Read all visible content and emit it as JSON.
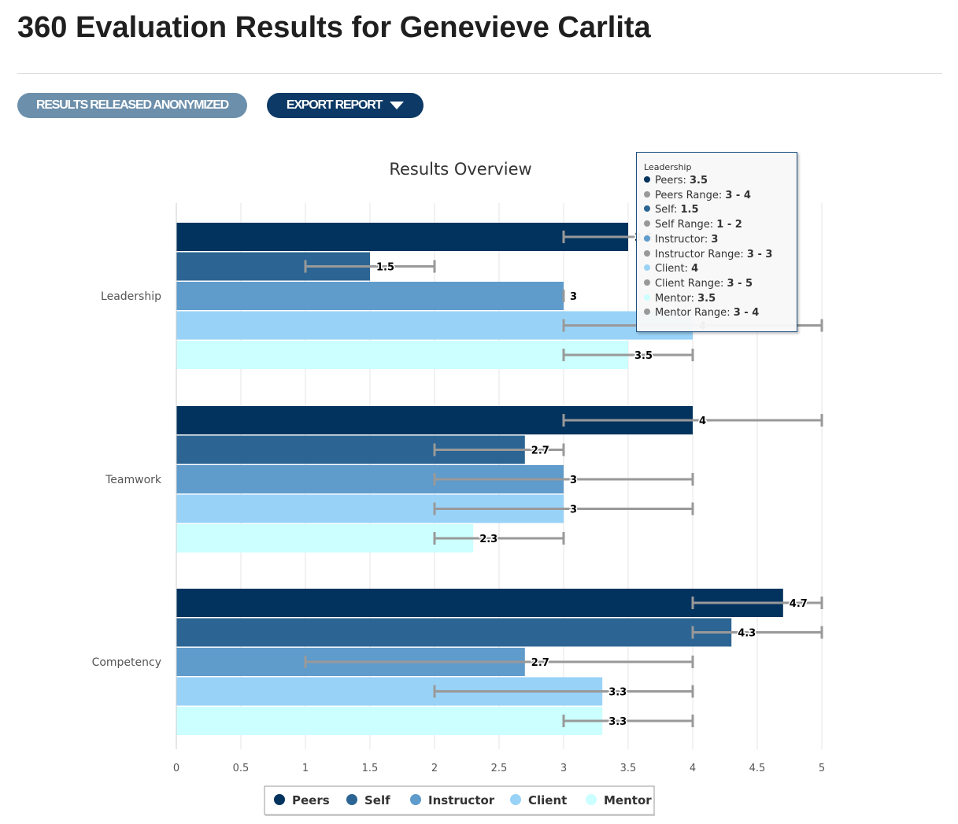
{
  "page": {
    "title": "360 Evaluation Results for Genevieve Carlita",
    "status_label": "RESULTS RELEASED ANONYMIZED",
    "export_label": "EXPORT REPORT"
  },
  "chart_data": {
    "type": "bar",
    "orientation": "horizontal",
    "title": "Results Overview",
    "categories": [
      "Leadership",
      "Teamwork",
      "Competency"
    ],
    "xlim": [
      0,
      5
    ],
    "ticks": [
      "0",
      "0.5",
      "1",
      "1.5",
      "2",
      "2.5",
      "3",
      "3.5",
      "4",
      "4.5",
      "5"
    ],
    "grid": true,
    "legend_position": "bottom",
    "series": [
      {
        "name": "Peers",
        "color": "#02335e",
        "values": [
          3.5,
          4,
          4.7
        ],
        "ranges": [
          [
            3,
            4
          ],
          [
            3,
            5
          ],
          [
            4,
            5
          ]
        ],
        "labels": [
          "3.5",
          "4",
          "4.7"
        ]
      },
      {
        "name": "Self",
        "color": "#2c6593",
        "values": [
          1.5,
          2.7,
          4.3
        ],
        "ranges": [
          [
            1,
            2
          ],
          [
            2,
            3
          ],
          [
            4,
            5
          ]
        ],
        "labels": [
          "1.5",
          "2.7",
          "4.3"
        ]
      },
      {
        "name": "Instructor",
        "color": "#5f9bcb",
        "values": [
          3,
          3,
          2.7
        ],
        "ranges": [
          [
            3,
            3
          ],
          [
            2,
            4
          ],
          [
            1,
            4
          ]
        ],
        "labels": [
          "3",
          "3",
          "2.7"
        ]
      },
      {
        "name": "Client",
        "color": "#99d2f7",
        "values": [
          4,
          3,
          3.3
        ],
        "ranges": [
          [
            3,
            5
          ],
          [
            2,
            4
          ],
          [
            2,
            4
          ]
        ],
        "labels": [
          "4",
          "3",
          "3.3"
        ]
      },
      {
        "name": "Mentor",
        "color": "#ccffff",
        "values": [
          3.5,
          2.3,
          3.3
        ],
        "ranges": [
          [
            3,
            4
          ],
          [
            2,
            3
          ],
          [
            3,
            4
          ]
        ],
        "labels": [
          "3.5",
          "2.3",
          "3.3"
        ]
      }
    ]
  },
  "tooltip": {
    "title": "Leadership",
    "rows": [
      {
        "label": "Peers",
        "value": "3.5",
        "color": "#02335e"
      },
      {
        "label": "Peers Range",
        "value": "3 - 4",
        "color": "#999999"
      },
      {
        "label": "Self",
        "value": "1.5",
        "color": "#2c6593"
      },
      {
        "label": "Self Range",
        "value": "1 - 2",
        "color": "#999999"
      },
      {
        "label": "Instructor",
        "value": "3",
        "color": "#5f9bcb"
      },
      {
        "label": "Instructor Range",
        "value": "3 - 3",
        "color": "#999999"
      },
      {
        "label": "Client",
        "value": "4",
        "color": "#99d2f7"
      },
      {
        "label": "Client Range",
        "value": "3 - 5",
        "color": "#999999"
      },
      {
        "label": "Mentor",
        "value": "3.5",
        "color": "#ccffff"
      },
      {
        "label": "Mentor Range",
        "value": "3 - 4",
        "color": "#999999"
      }
    ]
  }
}
